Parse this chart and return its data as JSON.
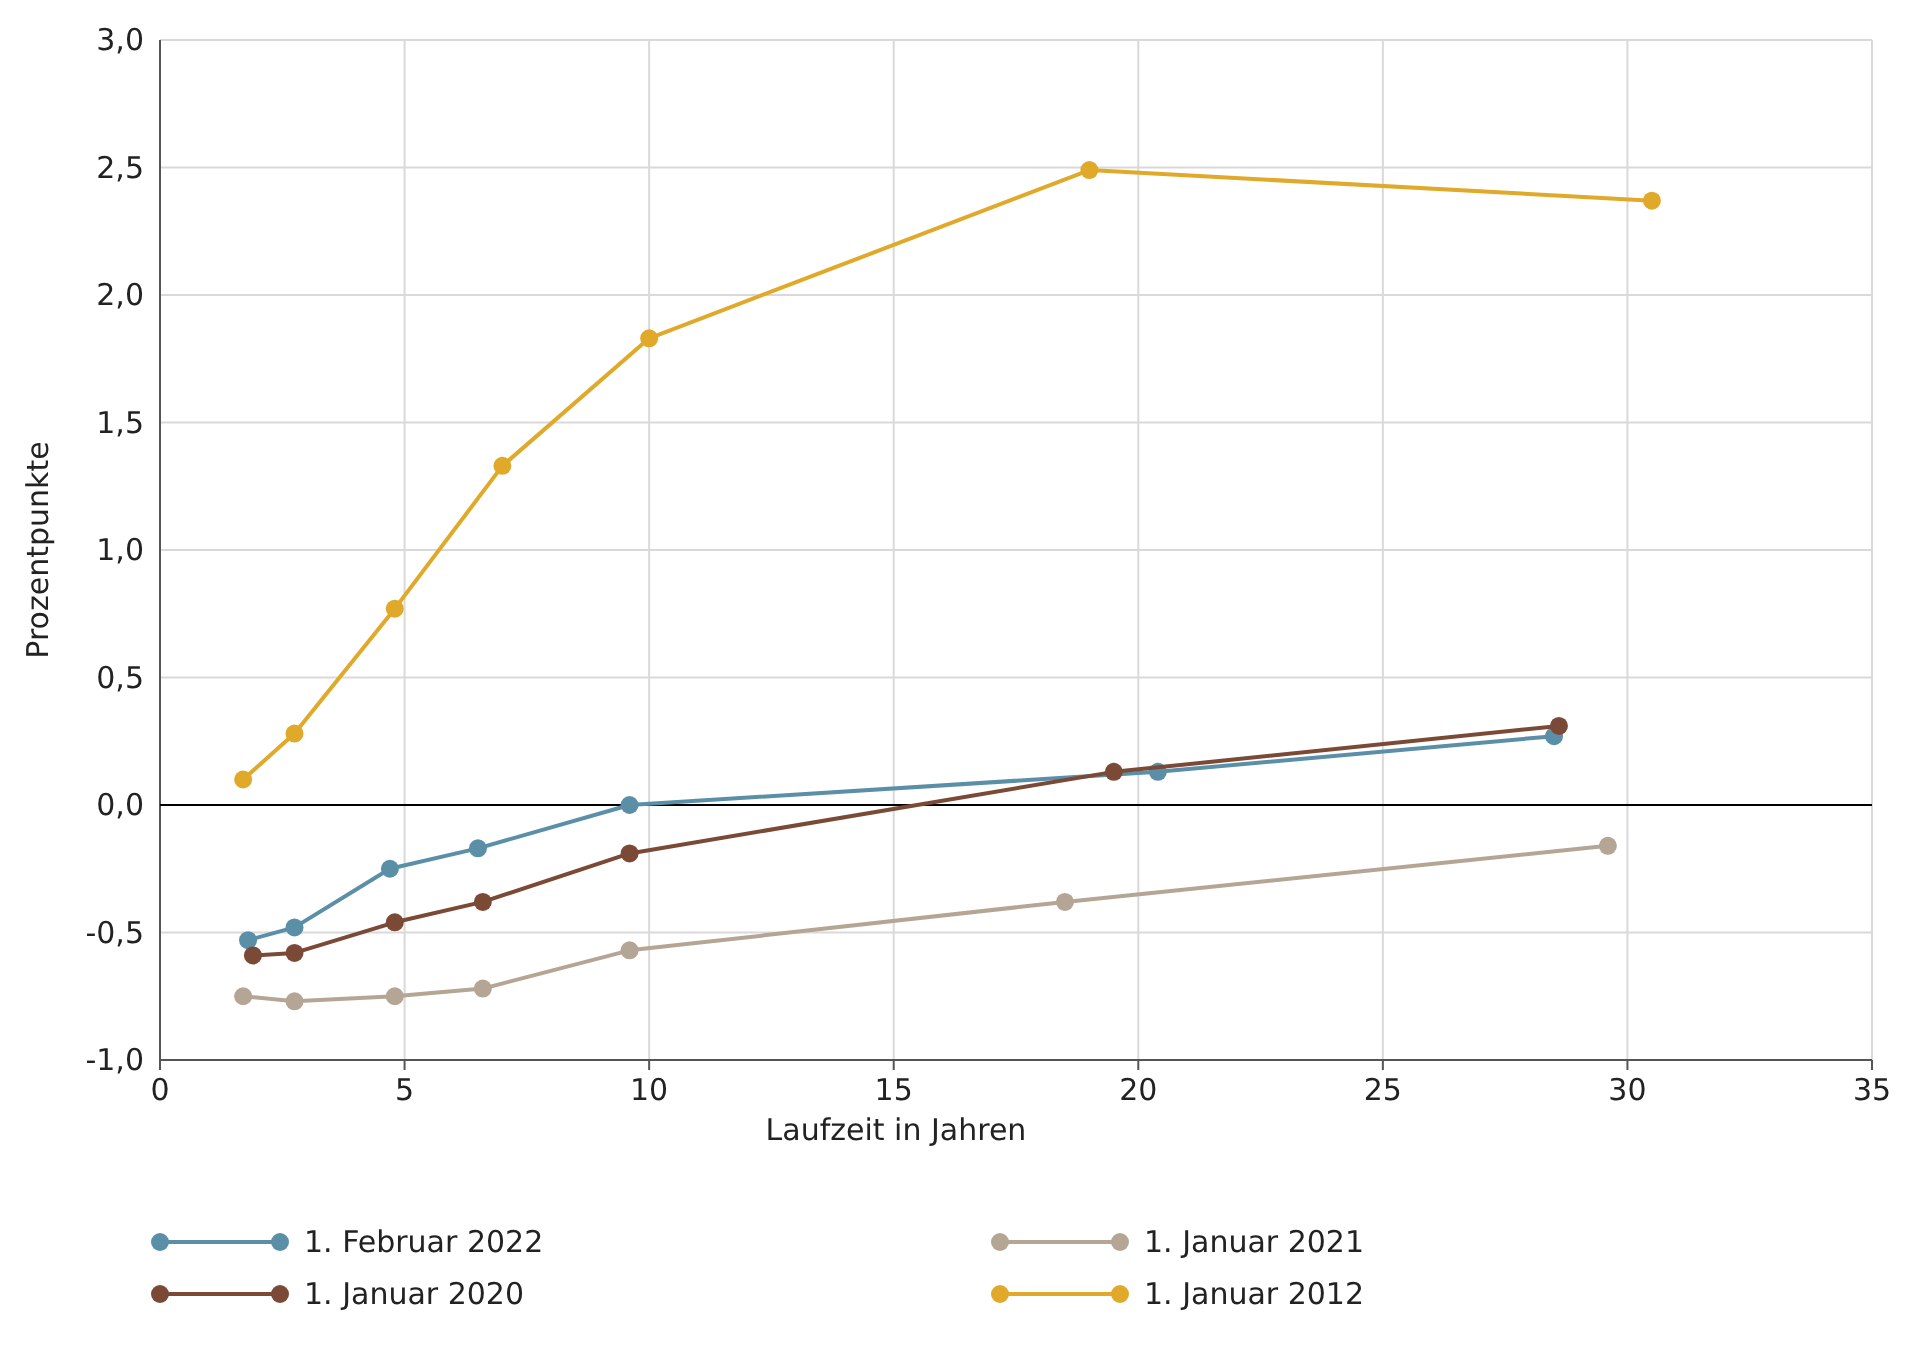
{
  "chart_data": {
    "type": "line",
    "xlabel": "Laufzeit in Jahren",
    "ylabel": "Prozentpunkte",
    "xlim": [
      0,
      35
    ],
    "xticks": [
      0,
      5,
      10,
      15,
      20,
      25,
      30,
      35
    ],
    "ylim": [
      -1,
      3
    ],
    "yticks": [
      {
        "value": -1,
        "label": "-1,0"
      },
      {
        "value": -0.5,
        "label": "-0,5"
      },
      {
        "value": 0,
        "label": "0,0"
      },
      {
        "value": 0.5,
        "label": "0,5"
      },
      {
        "value": 1,
        "label": "1,0"
      },
      {
        "value": 1.5,
        "label": "1,5"
      },
      {
        "value": 2,
        "label": "2,0"
      },
      {
        "value": 2.5,
        "label": "2,5"
      },
      {
        "value": 3,
        "label": "3,0"
      }
    ],
    "grid": true,
    "legend": "bottom",
    "marker": "circle",
    "line_style": "solid",
    "ref_lines": [
      {
        "axis": "y",
        "value": 0,
        "color": "#000000"
      }
    ],
    "series": [
      {
        "name": "1. Februar 2022",
        "color": "#5b8fa8",
        "x": [
          1.8,
          2.75,
          4.7,
          6.5,
          9.6,
          20.4,
          28.5
        ],
        "values": [
          -0.53,
          -0.48,
          -0.25,
          -0.17,
          0.0,
          0.13,
          0.27
        ]
      },
      {
        "name": "1. Januar 2021",
        "color": "#b5a595",
        "x": [
          1.7,
          2.75,
          4.8,
          6.6,
          9.6,
          18.5,
          29.6
        ],
        "values": [
          -0.75,
          -0.77,
          -0.75,
          -0.72,
          -0.57,
          -0.38,
          -0.16
        ]
      },
      {
        "name": "1. Januar 2020",
        "color": "#7b4a36",
        "x": [
          1.9,
          2.75,
          4.8,
          6.6,
          9.6,
          19.5,
          28.6
        ],
        "values": [
          -0.59,
          -0.58,
          -0.46,
          -0.38,
          -0.19,
          0.13,
          0.31
        ]
      },
      {
        "name": "1. Januar 2012",
        "color": "#e0a92a",
        "x": [
          1.7,
          2.75,
          4.8,
          7.0,
          10.0,
          19.0,
          30.5
        ],
        "values": [
          0.1,
          0.28,
          0.77,
          1.33,
          1.83,
          2.49,
          2.37
        ]
      }
    ]
  }
}
